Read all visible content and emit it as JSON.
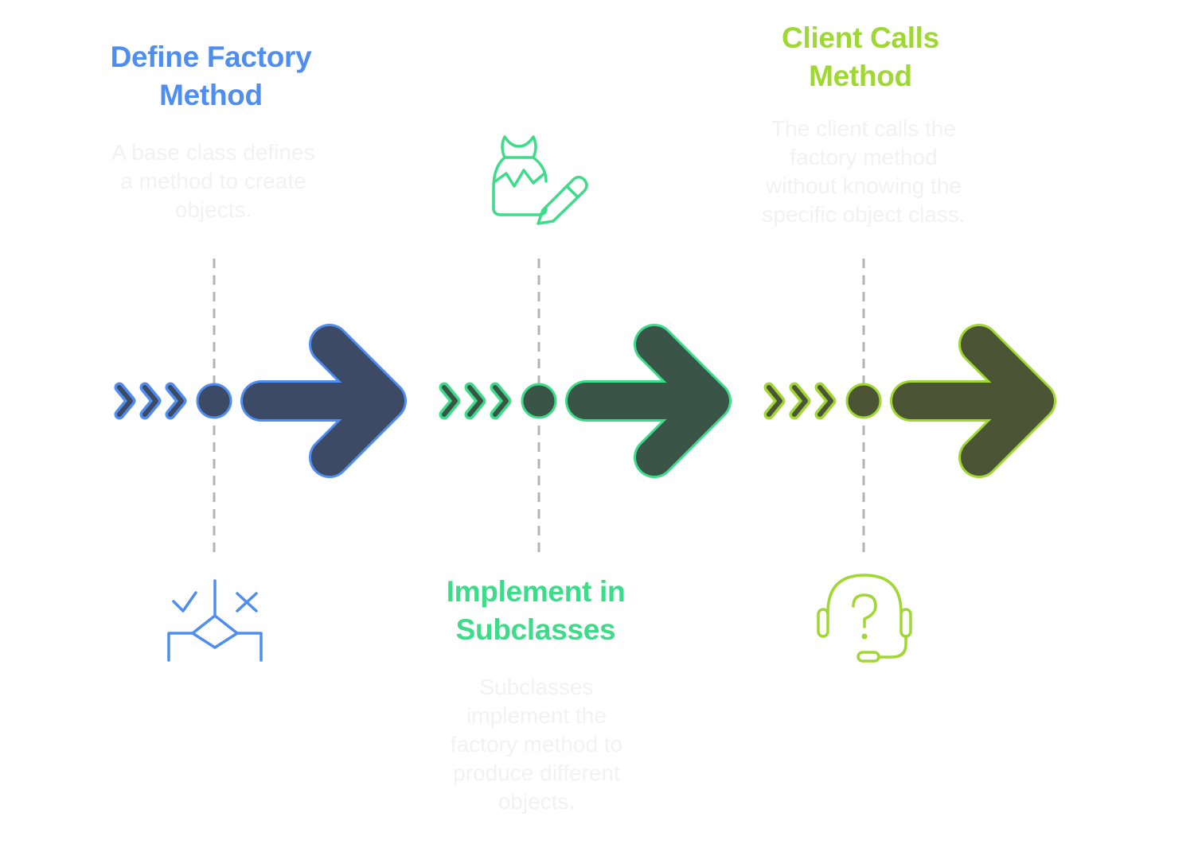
{
  "steps": [
    {
      "title": "Define Factory\nMethod",
      "description": "A base class defines\na method to create\nobjects.",
      "icon": "decision-diagram-icon",
      "color": "#4f8ef0",
      "fill": "#3c4a66"
    },
    {
      "title": "Implement in\nSubclasses",
      "description": "Subclasses\nimplement the\nfactory method to\nproduce different\nobjects.",
      "icon": "custom-bag-pencil-icon",
      "color": "#3ddc8a",
      "fill": "#3a5548"
    },
    {
      "title": "Client Calls\nMethod",
      "description": "The client calls the\nfactory method\nwithout knowing the\nspecific object class.",
      "icon": "question-headset-icon",
      "color": "#9fd832",
      "fill": "#4b5535"
    }
  ]
}
